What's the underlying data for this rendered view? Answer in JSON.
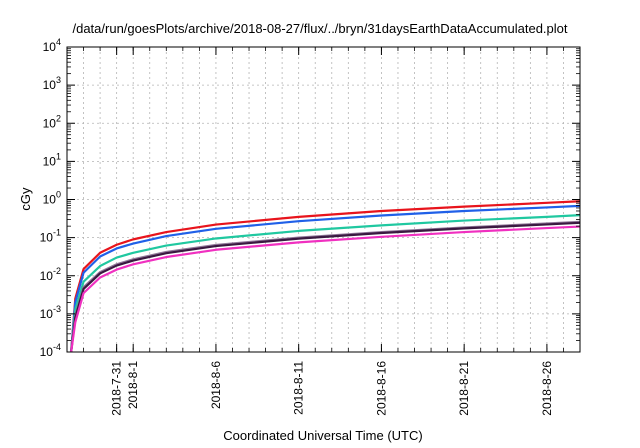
{
  "chart_data": {
    "type": "line",
    "title": "/data/run/goesPlots/archive/2018-08-27/flux/../bryn/31daysEarthDataAccumulated.plot",
    "xlabel": "Coordinated Universal Time (UTC)",
    "ylabel": "cGy",
    "yscale": "log",
    "ylim": [
      0.0001,
      10000
    ],
    "xlim": [
      "2018-07-28",
      "2018-08-28"
    ],
    "grid": true,
    "y_ticks": [
      {
        "base": "10",
        "exp": "-4",
        "value": 0.0001
      },
      {
        "base": "10",
        "exp": "-3",
        "value": 0.001
      },
      {
        "base": "10",
        "exp": "-2",
        "value": 0.01
      },
      {
        "base": "10",
        "exp": "-1",
        "value": 0.1
      },
      {
        "base": "10",
        "exp": "0",
        "value": 1
      },
      {
        "base": "10",
        "exp": "1",
        "value": 10
      },
      {
        "base": "10",
        "exp": "2",
        "value": 100
      },
      {
        "base": "10",
        "exp": "3",
        "value": 1000
      },
      {
        "base": "10",
        "exp": "4",
        "value": 10000
      }
    ],
    "x_ticks": [
      {
        "label": "2018-7-31",
        "date": "2018-07-31"
      },
      {
        "label": "2018-8-1",
        "date": "2018-08-01"
      },
      {
        "label": "2018-8-6",
        "date": "2018-08-06"
      },
      {
        "label": "2018-8-11",
        "date": "2018-08-11"
      },
      {
        "label": "2018-8-16",
        "date": "2018-08-16"
      },
      {
        "label": "2018-8-21",
        "date": "2018-08-21"
      },
      {
        "label": "2018-8-26",
        "date": "2018-08-26"
      }
    ],
    "series": [
      {
        "color": "#e8141c",
        "values": [
          {
            "x": "2018-07-28T06:00",
            "y": 0.0001
          },
          {
            "x": "2018-07-28T12:00",
            "y": 0.0025
          },
          {
            "x": "2018-07-29",
            "y": 0.015
          },
          {
            "x": "2018-07-30",
            "y": 0.04
          },
          {
            "x": "2018-07-31",
            "y": 0.065
          },
          {
            "x": "2018-08-01",
            "y": 0.09
          },
          {
            "x": "2018-08-03",
            "y": 0.14
          },
          {
            "x": "2018-08-06",
            "y": 0.22
          },
          {
            "x": "2018-08-11",
            "y": 0.35
          },
          {
            "x": "2018-08-16",
            "y": 0.5
          },
          {
            "x": "2018-08-21",
            "y": 0.65
          },
          {
            "x": "2018-08-26",
            "y": 0.82
          },
          {
            "x": "2018-08-28",
            "y": 0.9
          }
        ]
      },
      {
        "color": "#2060e8",
        "values": [
          {
            "x": "2018-07-28T06:00",
            "y": 0.0001
          },
          {
            "x": "2018-07-28T12:00",
            "y": 0.002
          },
          {
            "x": "2018-07-29",
            "y": 0.012
          },
          {
            "x": "2018-07-30",
            "y": 0.032
          },
          {
            "x": "2018-07-31",
            "y": 0.052
          },
          {
            "x": "2018-08-01",
            "y": 0.07
          },
          {
            "x": "2018-08-03",
            "y": 0.11
          },
          {
            "x": "2018-08-06",
            "y": 0.17
          },
          {
            "x": "2018-08-11",
            "y": 0.27
          },
          {
            "x": "2018-08-16",
            "y": 0.38
          },
          {
            "x": "2018-08-21",
            "y": 0.5
          },
          {
            "x": "2018-08-26",
            "y": 0.62
          },
          {
            "x": "2018-08-28",
            "y": 0.68
          }
        ]
      },
      {
        "color": "#20c8a0",
        "values": [
          {
            "x": "2018-07-28T06:00",
            "y": 0.0001
          },
          {
            "x": "2018-07-28T12:00",
            "y": 0.0013
          },
          {
            "x": "2018-07-29",
            "y": 0.007
          },
          {
            "x": "2018-07-30",
            "y": 0.018
          },
          {
            "x": "2018-07-31",
            "y": 0.03
          },
          {
            "x": "2018-08-01",
            "y": 0.04
          },
          {
            "x": "2018-08-03",
            "y": 0.062
          },
          {
            "x": "2018-08-06",
            "y": 0.095
          },
          {
            "x": "2018-08-11",
            "y": 0.15
          },
          {
            "x": "2018-08-16",
            "y": 0.21
          },
          {
            "x": "2018-08-21",
            "y": 0.28
          },
          {
            "x": "2018-08-26",
            "y": 0.35
          },
          {
            "x": "2018-08-28",
            "y": 0.39
          }
        ]
      },
      {
        "color": "#907898",
        "values": [
          {
            "x": "2018-07-28T06:00",
            "y": 0.0001
          },
          {
            "x": "2018-07-28T12:00",
            "y": 0.0009
          },
          {
            "x": "2018-07-29",
            "y": 0.005
          },
          {
            "x": "2018-07-30",
            "y": 0.0125
          },
          {
            "x": "2018-07-31",
            "y": 0.02
          },
          {
            "x": "2018-08-01",
            "y": 0.027
          },
          {
            "x": "2018-08-03",
            "y": 0.042
          },
          {
            "x": "2018-08-06",
            "y": 0.064
          },
          {
            "x": "2018-08-11",
            "y": 0.1
          },
          {
            "x": "2018-08-16",
            "y": 0.14
          },
          {
            "x": "2018-08-21",
            "y": 0.185
          },
          {
            "x": "2018-08-26",
            "y": 0.235
          },
          {
            "x": "2018-08-28",
            "y": 0.26
          }
        ]
      },
      {
        "color": "#3a1840",
        "values": [
          {
            "x": "2018-07-28T06:00",
            "y": 0.0001
          },
          {
            "x": "2018-07-28T12:00",
            "y": 0.0008
          },
          {
            "x": "2018-07-29",
            "y": 0.0045
          },
          {
            "x": "2018-07-30",
            "y": 0.0115
          },
          {
            "x": "2018-07-31",
            "y": 0.0185
          },
          {
            "x": "2018-08-01",
            "y": 0.025
          },
          {
            "x": "2018-08-03",
            "y": 0.039
          },
          {
            "x": "2018-08-06",
            "y": 0.06
          },
          {
            "x": "2018-08-11",
            "y": 0.094
          },
          {
            "x": "2018-08-16",
            "y": 0.132
          },
          {
            "x": "2018-08-21",
            "y": 0.175
          },
          {
            "x": "2018-08-26",
            "y": 0.222
          },
          {
            "x": "2018-08-28",
            "y": 0.245
          }
        ]
      },
      {
        "color": "#f030c0",
        "values": [
          {
            "x": "2018-07-28T06:00",
            "y": 0.0001
          },
          {
            "x": "2018-07-28T12:00",
            "y": 0.0006
          },
          {
            "x": "2018-07-29",
            "y": 0.0035
          },
          {
            "x": "2018-07-30",
            "y": 0.009
          },
          {
            "x": "2018-07-31",
            "y": 0.0145
          },
          {
            "x": "2018-08-01",
            "y": 0.02
          },
          {
            "x": "2018-08-03",
            "y": 0.031
          },
          {
            "x": "2018-08-06",
            "y": 0.048
          },
          {
            "x": "2018-08-11",
            "y": 0.075
          },
          {
            "x": "2018-08-16",
            "y": 0.105
          },
          {
            "x": "2018-08-21",
            "y": 0.14
          },
          {
            "x": "2018-08-26",
            "y": 0.178
          },
          {
            "x": "2018-08-28",
            "y": 0.195
          }
        ]
      }
    ]
  }
}
